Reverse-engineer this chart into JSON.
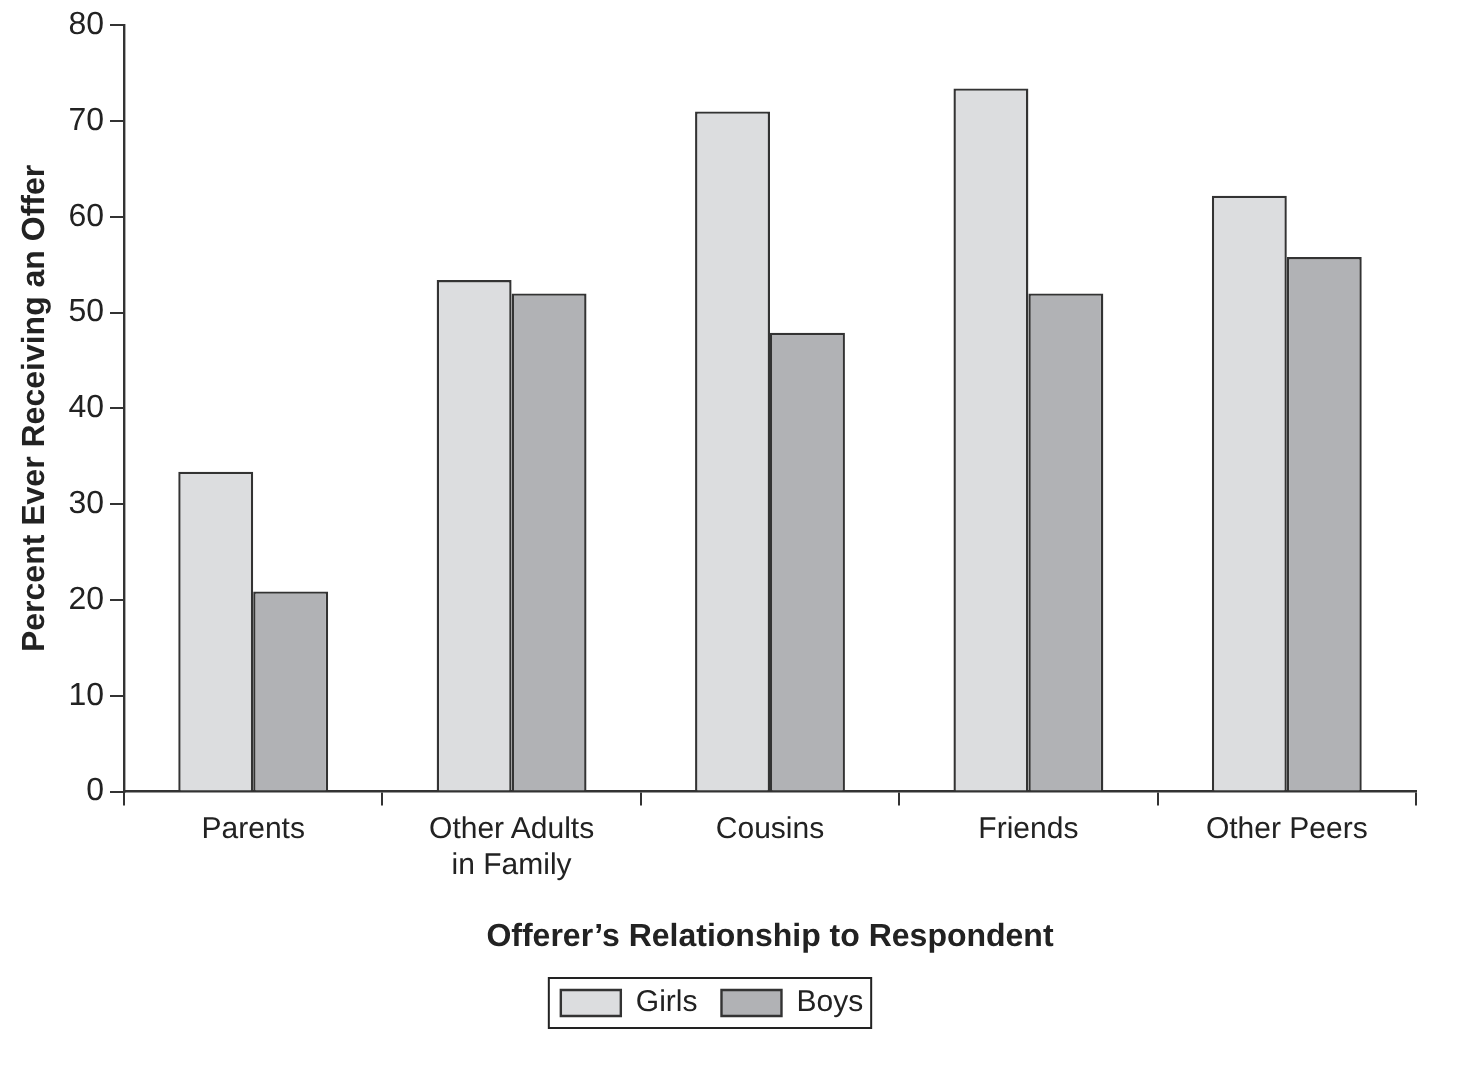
{
  "chart_data": {
    "type": "bar",
    "xlabel": "Offerer’s Relationship to Respondent",
    "ylabel": "Percent Ever Receiving an Offer",
    "categories": [
      "Parents",
      "Other Adults in Family",
      "Cousins",
      "Friends",
      "Other Peers"
    ],
    "series": [
      {
        "name": "Girls",
        "color": "#dcdddf",
        "values": [
          33.4,
          53.4,
          71.0,
          73.4,
          62.2
        ]
      },
      {
        "name": "Boys",
        "color": "#b1b2b5",
        "values": [
          20.9,
          52.0,
          47.9,
          52.0,
          55.8
        ]
      }
    ],
    "ylim": [
      0,
      80
    ],
    "yticks": [
      0,
      10,
      20,
      30,
      40,
      50,
      60,
      70,
      80
    ],
    "grid": false,
    "legend": "bottom"
  }
}
